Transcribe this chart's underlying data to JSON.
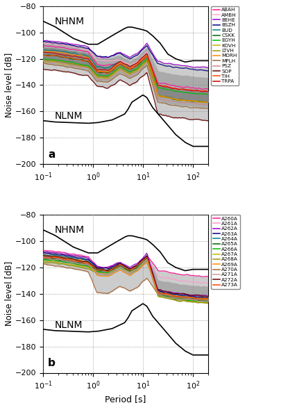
{
  "ylim": [
    -200,
    -80
  ],
  "xlim": [
    0.1,
    200
  ],
  "yticks": [
    -200,
    -180,
    -160,
    -140,
    -120,
    -100,
    -80
  ],
  "panel_a_stations": [
    {
      "name": "ABAH",
      "color": "#ff1493"
    },
    {
      "name": "AMBH",
      "color": "#ffaacc"
    },
    {
      "name": "BEHE",
      "color": "#9900cc"
    },
    {
      "name": "BSZH",
      "color": "#000080"
    },
    {
      "name": "BUD",
      "color": "#008080"
    },
    {
      "name": "CSKK",
      "color": "#006600"
    },
    {
      "name": "EGYH",
      "color": "#00bb00"
    },
    {
      "name": "KOVH",
      "color": "#bbbb00"
    },
    {
      "name": "LTVH",
      "color": "#999900"
    },
    {
      "name": "MORH",
      "color": "#ff8800"
    },
    {
      "name": "MPLH",
      "color": "#996633"
    },
    {
      "name": "PSZ",
      "color": "#cc8888"
    },
    {
      "name": "SOP",
      "color": "#660000"
    },
    {
      "name": "TIH",
      "color": "#ff4400"
    },
    {
      "name": "TRPA",
      "color": "#cc0000"
    }
  ],
  "panel_b_stations": [
    {
      "name": "A260A",
      "color": "#ff1493"
    },
    {
      "name": "A261A",
      "color": "#ff99cc"
    },
    {
      "name": "A262A",
      "color": "#9900cc"
    },
    {
      "name": "A263A",
      "color": "#000080"
    },
    {
      "name": "A264A",
      "color": "#008080"
    },
    {
      "name": "A265A",
      "color": "#006600"
    },
    {
      "name": "A266A",
      "color": "#00bb00"
    },
    {
      "name": "A267A",
      "color": "#bbbb00"
    },
    {
      "name": "A268A",
      "color": "#999900"
    },
    {
      "name": "A269A",
      "color": "#ff8800"
    },
    {
      "name": "A270A",
      "color": "#aa6633"
    },
    {
      "name": "A271A",
      "color": "#cc9999"
    },
    {
      "name": "A272A",
      "color": "#660000"
    },
    {
      "name": "A273A",
      "color": "#ff4400"
    }
  ],
  "xlabel": "Period [s]",
  "ylabel": "Noise level [dB]",
  "nhnm_label": "NHNM",
  "nlnm_label": "NLNM"
}
